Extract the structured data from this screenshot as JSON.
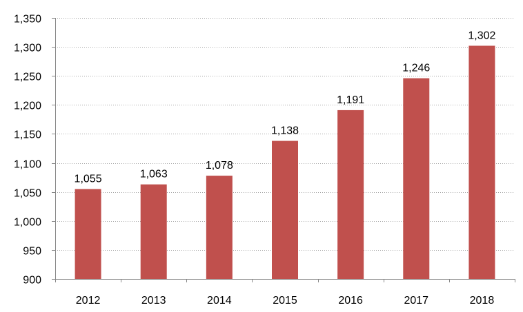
{
  "chart_data": {
    "type": "bar",
    "title": "",
    "xlabel": "",
    "ylabel": "",
    "categories": [
      "2012",
      "2013",
      "2014",
      "2015",
      "2016",
      "2017",
      "2018"
    ],
    "values": [
      1055,
      1063,
      1078,
      1138,
      1191,
      1246,
      1302
    ],
    "value_labels": [
      "1,055",
      "1,063",
      "1,078",
      "1,138",
      "1,191",
      "1,246",
      "1,302"
    ],
    "ylim": [
      900,
      1350
    ],
    "yticks": [
      900,
      950,
      1000,
      1050,
      1100,
      1150,
      1200,
      1250,
      1300,
      1350
    ],
    "ytick_labels": [
      "900",
      "950",
      "1,000",
      "1,050",
      "1,100",
      "1,150",
      "1,200",
      "1,250",
      "1,300",
      "1,350"
    ],
    "grid": true,
    "legend": "none",
    "bar_color": "#c0504d"
  }
}
